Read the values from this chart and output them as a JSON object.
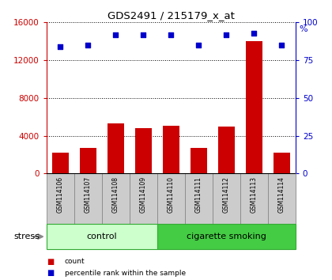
{
  "title": "GDS2491 / 215179_x_at",
  "samples": [
    "GSM114106",
    "GSM114107",
    "GSM114108",
    "GSM114109",
    "GSM114110",
    "GSM114111",
    "GSM114112",
    "GSM114113",
    "GSM114114"
  ],
  "counts": [
    2200,
    2700,
    5300,
    4800,
    5100,
    2700,
    5000,
    14000,
    2200
  ],
  "percentiles": [
    84,
    85,
    92,
    92,
    92,
    85,
    92,
    93,
    85
  ],
  "bar_color": "#cc0000",
  "dot_color": "#0000cc",
  "ylim_left": [
    0,
    16000
  ],
  "yticks_left": [
    0,
    4000,
    8000,
    12000,
    16000
  ],
  "ylim_right": [
    0,
    100
  ],
  "yticks_right": [
    0,
    25,
    50,
    75,
    100
  ],
  "control_samples": 4,
  "group_labels": [
    "control",
    "cigarette smoking"
  ],
  "control_color": "#ccffcc",
  "smoke_color": "#44cc44",
  "stress_label": "stress",
  "legend_items": [
    {
      "label": "count",
      "color": "#cc0000"
    },
    {
      "label": "percentile rank within the sample",
      "color": "#0000cc"
    }
  ],
  "background_color": "#ffffff",
  "sample_box_color": "#cccccc",
  "left_axis_color": "#cc0000",
  "right_axis_color": "#0000cc"
}
